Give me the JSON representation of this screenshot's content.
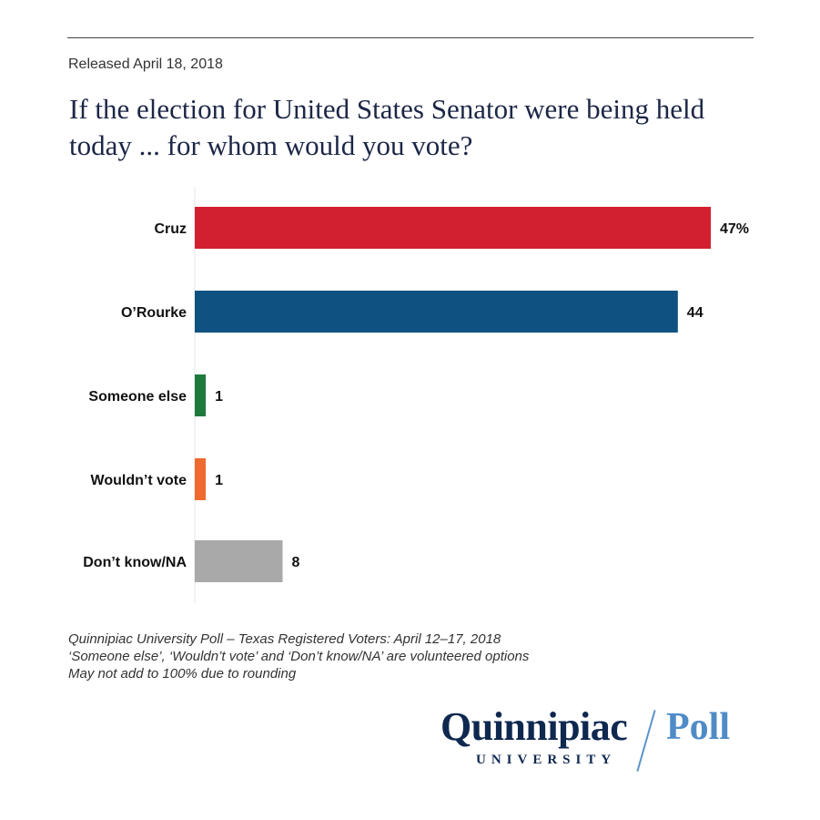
{
  "header": {
    "released": "Released April 18, 2018",
    "title": "If the election for United States Senator were being held today ... for whom would you vote?"
  },
  "chart_data": {
    "type": "bar",
    "orientation": "horizontal",
    "title": "If the election for United States Senator were being held today ... for whom would you vote?",
    "xlabel": "",
    "ylabel": "",
    "xlim": [
      0,
      47
    ],
    "grid": false,
    "categories": [
      "Cruz",
      "O’Rourke",
      "Someone else",
      "Wouldn’t vote",
      "Don’t know/NA"
    ],
    "values": [
      47,
      44,
      1,
      1,
      8
    ],
    "value_labels": [
      "47%",
      "44",
      "1",
      "1",
      "8"
    ],
    "colors": [
      "#d32030",
      "#0f5282",
      "#1e7a3c",
      "#ef6a2e",
      "#a9a9a9"
    ]
  },
  "notes": [
    "Quinnipiac University Poll – Texas Registered Voters: April 12–17, 2018",
    "‘Someone else’, ‘Wouldn’t vote’ and ‘Don’t know/NA’ are volunteered options",
    "May not add to 100% due to rounding"
  ],
  "logo": {
    "name": "Quinnipiac",
    "sub": "UNIVERSITY",
    "product": "Poll"
  }
}
